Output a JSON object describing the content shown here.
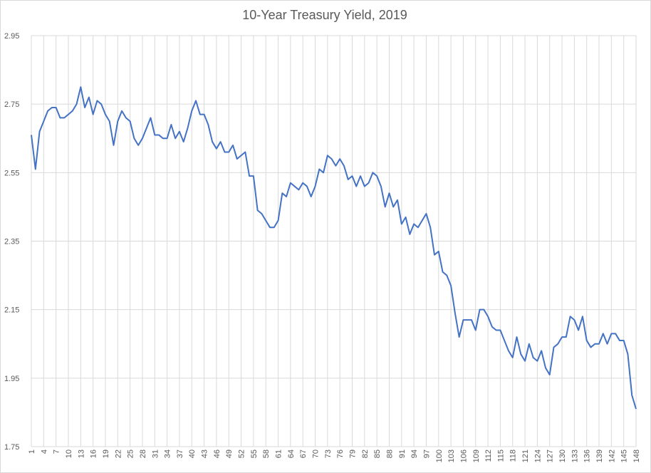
{
  "chart_data": {
    "type": "line",
    "title": "10-Year Treasury Yield, 2019",
    "xlabel": "",
    "ylabel": "",
    "ylim": [
      1.75,
      2.95
    ],
    "y_ticks": [
      "2.95",
      "2.75",
      "2.55",
      "2.35",
      "2.15",
      "1.95",
      "1.75"
    ],
    "x_tick_labels": [
      "1",
      "4",
      "7",
      "10",
      "13",
      "16",
      "19",
      "22",
      "25",
      "28",
      "31",
      "34",
      "37",
      "40",
      "43",
      "46",
      "49",
      "52",
      "55",
      "58",
      "61",
      "64",
      "67",
      "70",
      "73",
      "76",
      "79",
      "82",
      "85",
      "88",
      "91",
      "94",
      "97",
      "100",
      "103",
      "106",
      "109",
      "112",
      "115",
      "118",
      "121",
      "124",
      "127",
      "130",
      "133",
      "136",
      "139",
      "142",
      "145",
      "148"
    ],
    "grid": "vertical and horizontal major gridlines",
    "legend": "none",
    "series_color": "#4472c4",
    "series": [
      {
        "values": [
          2.66,
          2.56,
          2.67,
          2.7,
          2.73,
          2.74,
          2.74,
          2.71,
          2.71,
          2.72,
          2.73,
          2.75,
          2.8,
          2.74,
          2.77,
          2.72,
          2.76,
          2.75,
          2.72,
          2.7,
          2.63,
          2.7,
          2.73,
          2.71,
          2.7,
          2.65,
          2.63,
          2.65,
          2.68,
          2.71,
          2.66,
          2.66,
          2.65,
          2.65,
          2.69,
          2.65,
          2.67,
          2.64,
          2.68,
          2.73,
          2.76,
          2.72,
          2.72,
          2.69,
          2.64,
          2.62,
          2.64,
          2.61,
          2.61,
          2.63,
          2.59,
          2.6,
          2.61,
          2.54,
          2.54,
          2.44,
          2.43,
          2.41,
          2.39,
          2.39,
          2.41,
          2.49,
          2.48,
          2.52,
          2.51,
          2.5,
          2.52,
          2.51,
          2.48,
          2.51,
          2.56,
          2.55,
          2.6,
          2.59,
          2.57,
          2.59,
          2.57,
          2.53,
          2.54,
          2.51,
          2.54,
          2.51,
          2.52,
          2.55,
          2.54,
          2.51,
          2.45,
          2.49,
          2.45,
          2.47,
          2.4,
          2.42,
          2.37,
          2.4,
          2.39,
          2.41,
          2.43,
          2.39,
          2.31,
          2.32,
          2.26,
          2.25,
          2.22,
          2.14,
          2.07,
          2.12,
          2.12,
          2.12,
          2.09,
          2.15,
          2.15,
          2.13,
          2.1,
          2.09,
          2.09,
          2.06,
          2.03,
          2.01,
          2.07,
          2.02,
          2.0,
          2.05,
          2.01,
          2.0,
          2.03,
          1.98,
          1.96,
          2.04,
          2.05,
          2.07,
          2.07,
          2.13,
          2.12,
          2.09,
          2.13,
          2.06,
          2.04,
          2.05,
          2.05,
          2.08,
          2.05,
          2.08,
          2.08,
          2.06,
          2.06,
          2.02,
          1.9,
          1.86
        ]
      }
    ]
  }
}
